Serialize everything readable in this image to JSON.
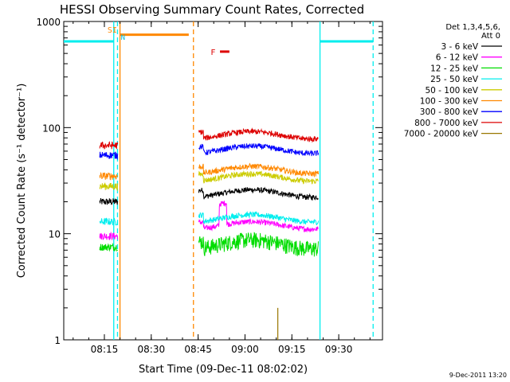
{
  "chart_data": {
    "type": "line",
    "title": "HESSI Observing Summary Count Rates, Corrected",
    "xlabel": "Start Time (09-Dec-11 08:02:02)",
    "ylabel": "Corrected Count Rate (s⁻¹ detector⁻¹)",
    "yscale": "log",
    "ylim": [
      1,
      1000
    ],
    "xlim": [
      "08:02",
      "09:44"
    ],
    "xticks": [
      "08:15",
      "08:30",
      "08:45",
      "09:00",
      "09:15",
      "09:30"
    ],
    "yticks": [
      "1",
      "10",
      "100",
      "1000"
    ],
    "legend_position": "right",
    "legend_header": [
      "Det 1,3,4,5,6,",
      "Att 0"
    ],
    "corner_timestamp": "9-Dec-2011 13:20",
    "flags": [
      {
        "label": "SI",
        "color": "#ff8800"
      },
      {
        "label": "N",
        "color": "#00bbdd"
      },
      {
        "label": "F",
        "color": "#dd0000"
      }
    ],
    "series": [
      {
        "name": "3 - 6 keV",
        "color": "#000000",
        "seg1": 20,
        "seg2": 24
      },
      {
        "name": "6 - 12 keV",
        "color": "#ff00ff",
        "seg1": 9.5,
        "seg2": 12
      },
      {
        "name": "12 - 25 keV",
        "color": "#00dd00",
        "seg1": 7.5,
        "seg2": 8
      },
      {
        "name": "25 - 50 keV",
        "color": "#00eeee",
        "seg1": 13,
        "seg2": 14
      },
      {
        "name": "50 - 100 keV",
        "color": "#cccc00",
        "seg1": 28,
        "seg2": 34
      },
      {
        "name": "100 - 300 keV",
        "color": "#ff8800",
        "seg1": 35,
        "seg2": 40
      },
      {
        "name": "300 - 800 keV",
        "color": "#0000ff",
        "seg1": 55,
        "seg2": 62
      },
      {
        "name": "800 - 7000 keV",
        "color": "#dd0000",
        "seg1": 68,
        "seg2": 85
      },
      {
        "name": "7000 - 20000 keV",
        "color": "#997700",
        "seg1": null,
        "seg2": null
      }
    ]
  }
}
